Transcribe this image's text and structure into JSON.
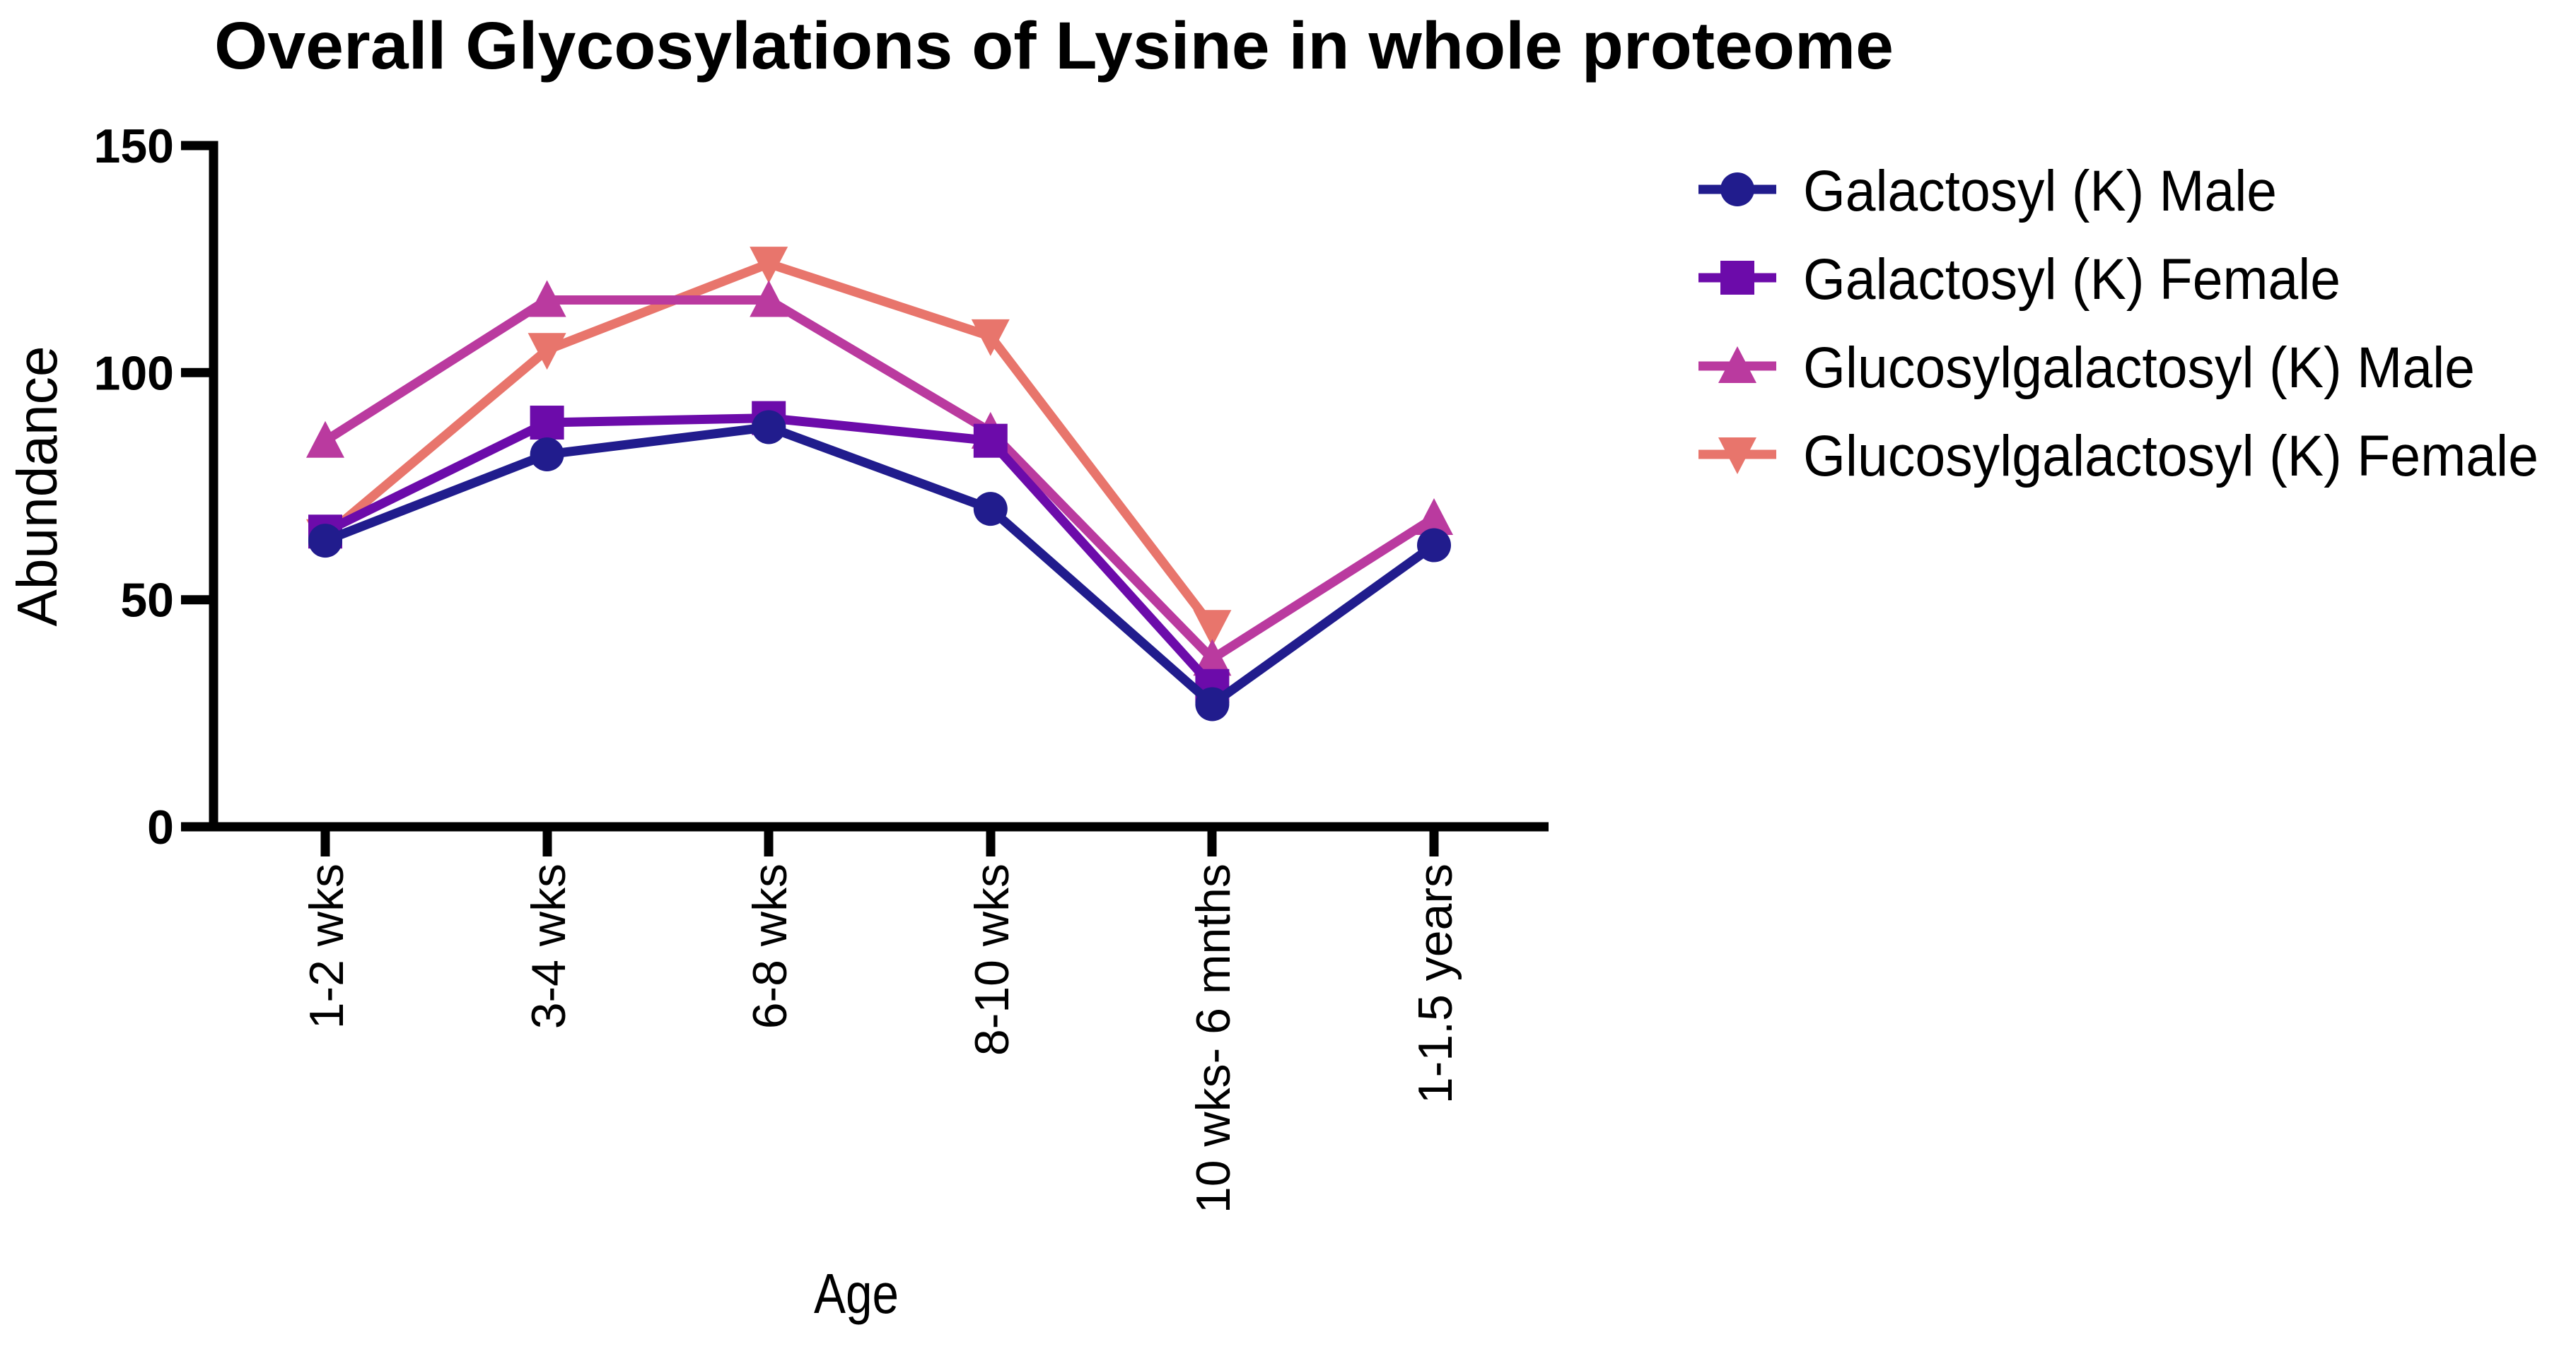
{
  "chart_data": {
    "type": "line",
    "title": "Overall Glycosylations of Lysine in whole proteome",
    "xlabel": "Age",
    "ylabel": "Abundance",
    "categories": [
      "1-2 wks",
      "3-4 wks",
      "6-8 wks",
      "8-10 wks",
      "10 wks- 6 mnths",
      "1-1.5 years"
    ],
    "y_ticks": [
      0,
      50,
      100,
      150
    ],
    "ylim": [
      0,
      150
    ],
    "grid": false,
    "legend_position": "right",
    "series": [
      {
        "name": "Galactosyl (K) Male",
        "marker": "circle",
        "color": "#211c8d",
        "values": [
          63,
          82,
          88,
          70,
          27,
          62
        ]
      },
      {
        "name": "Galactosyl (K) Female",
        "marker": "square",
        "color": "#6c0baa",
        "values": [
          65,
          89,
          90,
          85,
          31,
          null
        ]
      },
      {
        "name": "Glucosylgalactosyl (K) Male",
        "marker": "triangle-up",
        "color": "#ba3a9f",
        "values": [
          85,
          116,
          116,
          87,
          37,
          68
        ]
      },
      {
        "name": "Glucosylgalactosyl (K) Female",
        "marker": "triangle-down",
        "color": "#e8756c",
        "values": [
          64,
          105,
          124,
          108,
          44,
          null
        ]
      }
    ]
  }
}
